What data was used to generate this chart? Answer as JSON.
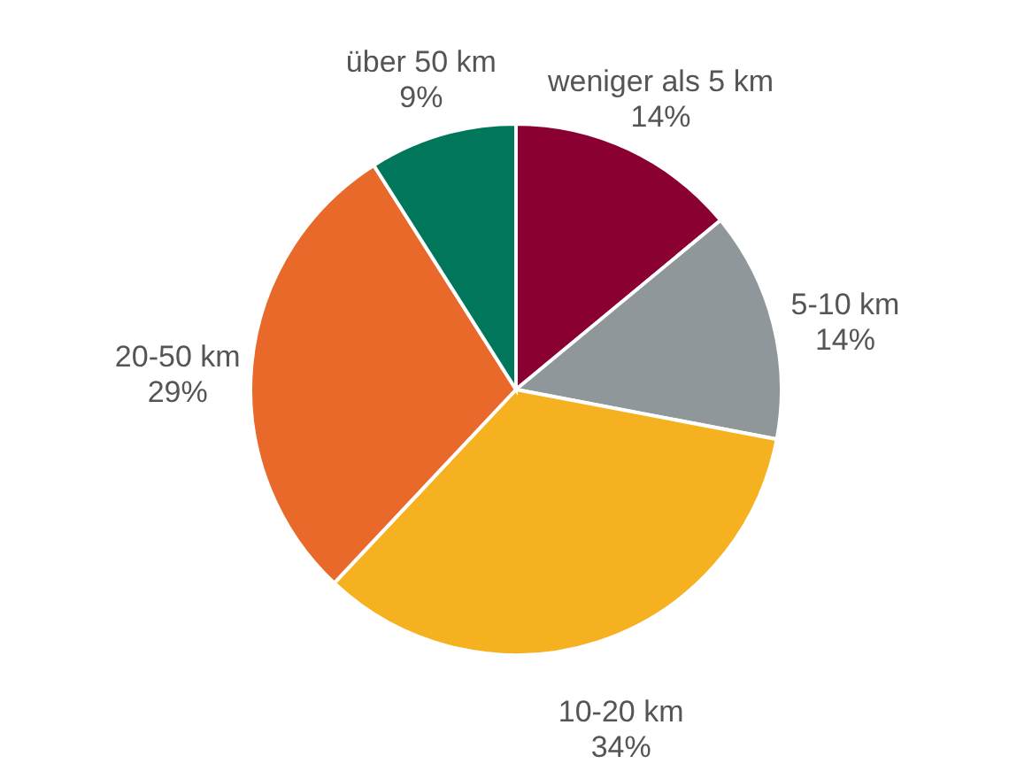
{
  "chart_data": {
    "type": "pie",
    "categories": [
      "weniger als 5 km",
      "5-10 km",
      "10-20 km",
      "20-50 km",
      "über 50 km"
    ],
    "values": [
      14,
      14,
      34,
      29,
      9
    ],
    "value_labels": [
      "14%",
      "14%",
      "34%",
      "29%",
      "9%"
    ],
    "colors": [
      "#8b0032",
      "#8f979b",
      "#f5b120",
      "#e8692a",
      "#00775a"
    ],
    "legend": false
  }
}
